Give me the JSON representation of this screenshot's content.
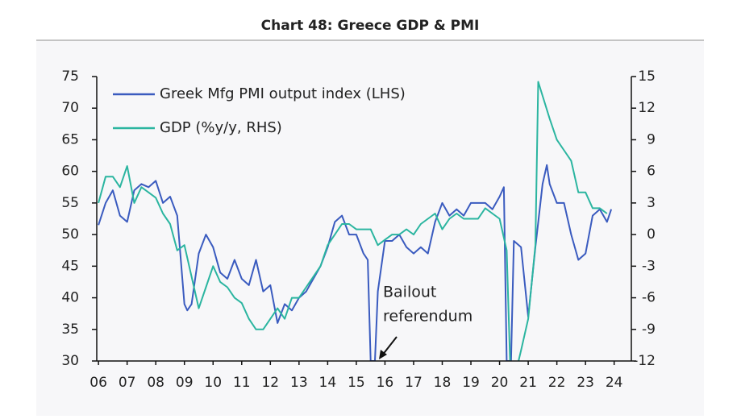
{
  "chart_data": {
    "type": "line",
    "title": "Chart 48: Greece GDP & PMI",
    "annotation": [
      "Bailout",
      "referendum"
    ],
    "xlim": [
      2005.94,
      2024.6
    ],
    "xticks": [
      {
        "value": 2006,
        "label": "06"
      },
      {
        "value": 2007,
        "label": "07"
      },
      {
        "value": 2008,
        "label": "08"
      },
      {
        "value": 2009,
        "label": "09"
      },
      {
        "value": 2010,
        "label": "10"
      },
      {
        "value": 2011,
        "label": "11"
      },
      {
        "value": 2012,
        "label": "12"
      },
      {
        "value": 2013,
        "label": "13"
      },
      {
        "value": 2014,
        "label": "14"
      },
      {
        "value": 2015,
        "label": "15"
      },
      {
        "value": 2016,
        "label": "16"
      },
      {
        "value": 2017,
        "label": "17"
      },
      {
        "value": 2018,
        "label": "18"
      },
      {
        "value": 2019,
        "label": "19"
      },
      {
        "value": 2020,
        "label": "20"
      },
      {
        "value": 2021,
        "label": "21"
      },
      {
        "value": 2022,
        "label": "22"
      },
      {
        "value": 2023,
        "label": "23"
      },
      {
        "value": 2024,
        "label": "24"
      }
    ],
    "ylim": [
      30,
      75
    ],
    "yticks": [
      30,
      35,
      40,
      45,
      50,
      55,
      60,
      65,
      70,
      75
    ],
    "y2lim": [
      -12,
      15
    ],
    "y2ticks": [
      -12,
      -9,
      -6,
      -3,
      0,
      3,
      6,
      9,
      12,
      15
    ],
    "legend": "upper left",
    "series": [
      {
        "name": "Greek Mfg PMI output index (LHS)",
        "color": "#3a5bbf",
        "x": [
          2006.0,
          2006.25,
          2006.5,
          2006.75,
          2007.0,
          2007.25,
          2007.5,
          2007.75,
          2008.0,
          2008.25,
          2008.5,
          2008.75,
          2009.0,
          2009.1,
          2009.25,
          2009.5,
          2009.75,
          2010.0,
          2010.25,
          2010.5,
          2010.75,
          2011.0,
          2011.25,
          2011.5,
          2011.75,
          2012.0,
          2012.25,
          2012.5,
          2012.75,
          2013.0,
          2013.25,
          2013.5,
          2013.75,
          2014.0,
          2014.25,
          2014.5,
          2014.75,
          2015.0,
          2015.25,
          2015.4,
          2015.5,
          2015.65,
          2015.75,
          2016.0,
          2016.25,
          2016.5,
          2016.75,
          2017.0,
          2017.25,
          2017.5,
          2017.75,
          2018.0,
          2018.25,
          2018.5,
          2018.75,
          2019.0,
          2019.25,
          2019.5,
          2019.75,
          2020.0,
          2020.15,
          2020.25,
          2020.4,
          2020.5,
          2020.75,
          2021.0,
          2021.25,
          2021.5,
          2021.65,
          2021.75,
          2022.0,
          2022.25,
          2022.5,
          2022.75,
          2023.0,
          2023.25,
          2023.5,
          2023.75,
          2023.9
        ],
        "values": [
          51.5,
          55,
          57,
          53,
          52,
          57,
          58,
          57.5,
          58.5,
          55,
          56,
          53,
          39,
          38,
          39,
          47,
          50,
          48,
          44,
          43,
          46,
          43,
          42,
          46,
          41,
          42,
          36,
          39,
          38,
          40,
          41,
          43,
          45,
          48,
          52,
          53,
          50,
          50,
          47,
          46,
          30,
          30,
          41,
          49,
          49,
          50,
          48,
          47,
          48,
          47,
          52,
          55,
          53,
          54,
          53,
          55,
          55,
          55,
          54,
          56,
          57.5,
          30,
          30,
          49,
          48,
          37,
          48,
          58,
          61,
          58,
          55,
          55,
          50,
          46,
          47,
          53,
          54,
          52,
          54
        ]
      },
      {
        "name": "GDP (%y/y, RHS)",
        "color": "#2bb5a0",
        "axis": "y2",
        "x": [
          2006.0,
          2006.25,
          2006.5,
          2006.75,
          2007.0,
          2007.25,
          2007.5,
          2007.75,
          2008.0,
          2008.25,
          2008.5,
          2008.75,
          2009.0,
          2009.25,
          2009.5,
          2009.75,
          2010.0,
          2010.25,
          2010.5,
          2010.75,
          2011.0,
          2011.25,
          2011.5,
          2011.75,
          2012.0,
          2012.25,
          2012.5,
          2012.75,
          2013.0,
          2013.25,
          2013.5,
          2013.75,
          2014.0,
          2014.25,
          2014.5,
          2014.75,
          2015.0,
          2015.25,
          2015.5,
          2015.75,
          2016.0,
          2016.25,
          2016.5,
          2016.75,
          2017.0,
          2017.25,
          2017.5,
          2017.75,
          2018.0,
          2018.25,
          2018.5,
          2018.75,
          2019.0,
          2019.25,
          2019.5,
          2019.75,
          2020.0,
          2020.25,
          2020.4,
          2020.75,
          2021.0,
          2021.25,
          2021.35,
          2021.75,
          2022.0,
          2022.25,
          2022.5,
          2022.75,
          2023.0,
          2023.25,
          2023.5,
          2023.75
        ],
        "values": [
          3,
          5.5,
          5.5,
          4.5,
          6.5,
          3,
          4.5,
          4,
          3.5,
          2,
          1,
          -1.5,
          -1,
          -4,
          -7,
          -5,
          -3,
          -4.5,
          -5,
          -6,
          -6.5,
          -8,
          -9,
          -9,
          -8,
          -7,
          -8,
          -6,
          -6,
          -5,
          -4,
          -3,
          -1,
          0,
          1,
          1,
          0.5,
          0.5,
          0.5,
          -1,
          -0.5,
          0,
          0,
          0.5,
          0,
          1,
          1.5,
          2,
          0.5,
          1.5,
          2,
          1.5,
          1.5,
          1.5,
          2.5,
          2,
          1.5,
          -1.5,
          -15,
          -11,
          -8,
          -1,
          14.5,
          11,
          9,
          8,
          7,
          4,
          4,
          2.5,
          2.5,
          2
        ]
      }
    ]
  }
}
